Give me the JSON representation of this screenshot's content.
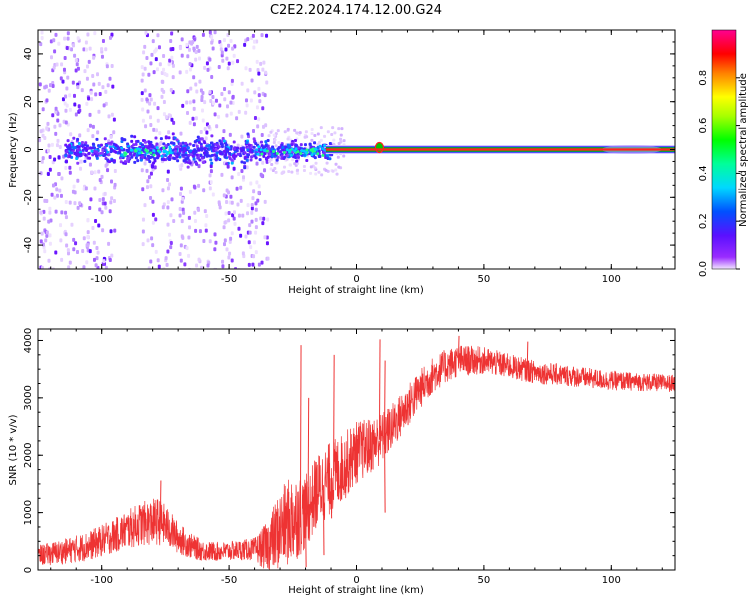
{
  "figure_title": "C2E2.2024.174.12.00.G24",
  "colors": {
    "snr_line": "#ee3333",
    "axis": "#000000",
    "trace_core": "#ff2020",
    "trace_halo": "#00c800",
    "background": "#ffffff"
  },
  "chart_data": [
    {
      "type": "heatmap",
      "title": "",
      "xlabel": "Height of straight line (km)",
      "ylabel": "Frequency (Hz)",
      "xlim": [
        -125,
        125
      ],
      "ylim": [
        -50,
        50
      ],
      "x_ticks": [
        -100,
        -50,
        0,
        50,
        100
      ],
      "y_ticks": [
        -40,
        -20,
        0,
        20,
        40
      ],
      "colorbar": {
        "label": "Normalized spectral amplitude",
        "range": [
          0,
          1
        ],
        "ticks": [
          0.0,
          0.2,
          0.4,
          0.6,
          0.8
        ],
        "colormap": "rainbow (violet to red to magenta)"
      },
      "noise_regions_x": [
        [
          -125,
          -95
        ],
        [
          -85,
          -72
        ],
        [
          -70,
          -35
        ]
      ],
      "main_trace_frequency": 0,
      "main_trace_x_start": -12,
      "main_trace_x_end": 125,
      "grid": false
    },
    {
      "type": "line",
      "title": "",
      "xlabel": "Height of straight line (km)",
      "ylabel": "SNR (10 * v/v)",
      "xlim": [
        -125,
        125
      ],
      "ylim": [
        0,
        4200
      ],
      "x_ticks": [
        -100,
        -50,
        0,
        50,
        100
      ],
      "y_ticks": [
        0,
        1000,
        2000,
        3000,
        4000
      ],
      "grid": false,
      "series": [
        {
          "x": [
            -125,
            -115,
            -105,
            -95,
            -85,
            -78,
            -75,
            -70,
            -65,
            -60,
            -55,
            -50,
            -45,
            -40,
            -35,
            -30,
            -25,
            -20,
            -15,
            -10,
            -5,
            0,
            5,
            10,
            15,
            20,
            25,
            30,
            35,
            40,
            50,
            60,
            70,
            80,
            90,
            100,
            110,
            125
          ],
          "values": [
            250,
            320,
            420,
            600,
            800,
            850,
            780,
            560,
            420,
            330,
            320,
            330,
            350,
            360,
            400,
            700,
            900,
            1000,
            1400,
            1600,
            1800,
            2050,
            2150,
            2300,
            2550,
            2850,
            3150,
            3400,
            3550,
            3650,
            3650,
            3550,
            3450,
            3400,
            3350,
            3300,
            3280,
            3250
          ],
          "noise": [
            180,
            220,
            260,
            300,
            380,
            420,
            360,
            280,
            220,
            180,
            170,
            170,
            180,
            200,
            450,
            700,
            800,
            650,
            650,
            650,
            600,
            550,
            500,
            450,
            400,
            380,
            350,
            320,
            300,
            280,
            240,
            220,
            200,
            190,
            180,
            170,
            160,
            150
          ],
          "spikes": [
            {
              "x": -77,
              "y": 1560
            },
            {
              "x": -22,
              "y": 3920
            },
            {
              "x": -19,
              "y": 3000
            },
            {
              "x": -9,
              "y": 3750
            },
            {
              "x": 9,
              "y": 4020
            },
            {
              "x": 11,
              "y": 3650
            },
            {
              "x": 40,
              "y": 4080
            },
            {
              "x": 67,
              "y": 3980
            }
          ],
          "lows": [
            {
              "x": -20,
              "y": 50
            },
            {
              "x": -13,
              "y": 260
            },
            {
              "x": -10,
              "y": 900
            },
            {
              "x": 11,
              "y": 1000
            }
          ]
        }
      ]
    }
  ]
}
